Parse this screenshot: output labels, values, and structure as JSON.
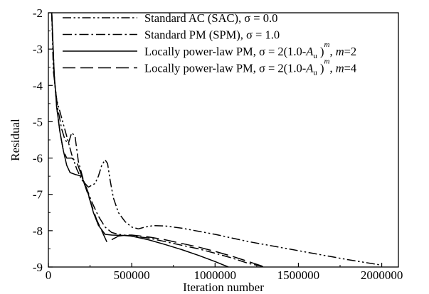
{
  "chart_data": {
    "type": "line",
    "xlabel": "Iteration number",
    "ylabel": "Residual",
    "xlim": [
      0,
      2100000
    ],
    "ylim": [
      -9,
      -2
    ],
    "x_ticks": [
      0,
      500000,
      1000000,
      1500000,
      2000000
    ],
    "x_tick_labels": [
      "0",
      "500000",
      "1000000",
      "1500000",
      "2000000"
    ],
    "y_ticks": [
      -9,
      -8,
      -7,
      -6,
      -5,
      -4,
      -3,
      -2
    ],
    "y_tick_labels": [
      "-9",
      "-8",
      "-7",
      "-6",
      "-5",
      "-4",
      "-3",
      "-2"
    ],
    "grid": false,
    "legend_position": "top-right",
    "series": [
      {
        "name": "Standard AC (SAC), σ = 0.0",
        "legend_parts": [
          {
            "t": "Standard AC (SAC), σ = 0.0"
          }
        ],
        "style": "dash-dot-dot",
        "x": [
          20000,
          30000,
          50000,
          80000,
          110000,
          140000,
          170000,
          200000,
          240000,
          280000,
          300000,
          320000,
          340000,
          355000,
          370000,
          390000,
          420000,
          460000,
          500000,
          540000,
          580000,
          630000,
          700000,
          800000,
          1000000,
          1200000,
          1500000,
          1800000,
          2000000
        ],
        "y": [
          -2.0,
          -3.6,
          -4.4,
          -4.9,
          -5.4,
          -5.9,
          -6.3,
          -6.6,
          -6.8,
          -6.7,
          -6.5,
          -6.2,
          -6.05,
          -6.15,
          -6.6,
          -7.1,
          -7.5,
          -7.75,
          -7.9,
          -7.95,
          -7.9,
          -7.86,
          -7.87,
          -7.93,
          -8.1,
          -8.3,
          -8.55,
          -8.8,
          -8.95
        ]
      },
      {
        "name": "Standard PM (SPM), σ = 1.0",
        "legend_parts": [
          {
            "t": "Standard PM (SPM), σ = 1.0"
          }
        ],
        "style": "dash-dot",
        "x": [
          20000,
          35000,
          55000,
          80000,
          100000,
          120000,
          140000,
          160000,
          180000,
          210000,
          260000,
          300000,
          340000,
          380000,
          420000,
          500000,
          600000,
          700000,
          800000,
          900000,
          1000000,
          1100000,
          1200000,
          1300000
        ],
        "y": [
          -2.0,
          -3.8,
          -4.6,
          -5.2,
          -5.5,
          -5.6,
          -5.3,
          -5.4,
          -6.1,
          -6.6,
          -7.2,
          -7.6,
          -7.9,
          -8.05,
          -8.1,
          -8.15,
          -8.2,
          -8.3,
          -8.4,
          -8.5,
          -8.62,
          -8.75,
          -8.9,
          -9.0
        ]
      },
      {
        "name": "Locally power-law PM, σ = 2(1.0-Au)^m, m=2",
        "legend_parts": [
          {
            "t": "Locally power-law PM, σ = 2(1.0-"
          },
          {
            "t": "A",
            "i": true
          },
          {
            "t": "u",
            "sub": true
          },
          {
            "t": " )"
          },
          {
            "t": "m",
            "sup": true,
            "i": true
          },
          {
            "t": ", "
          },
          {
            "t": "m",
            "i": true
          },
          {
            "t": "=2"
          }
        ],
        "style": "solid",
        "x": [
          20000,
          35000,
          50000,
          70000,
          90000,
          110000,
          130000,
          160000,
          200000,
          240000,
          270000,
          300000,
          340000,
          380000,
          450000,
          500000,
          600000,
          700000,
          800000,
          900000,
          1000000,
          1080000
        ],
        "y": [
          -2.0,
          -3.7,
          -4.6,
          -5.3,
          -5.8,
          -6.2,
          -6.4,
          -6.45,
          -6.5,
          -7.0,
          -7.5,
          -7.85,
          -8.1,
          -8.12,
          -8.13,
          -8.15,
          -8.25,
          -8.38,
          -8.52,
          -8.68,
          -8.85,
          -9.0
        ]
      },
      {
        "name": "Locally power-law PM, σ = 2(1.0-Au)^m, m=4",
        "legend_parts": [
          {
            "t": "Locally power-law PM, σ = 2(1.0-"
          },
          {
            "t": "A",
            "i": true
          },
          {
            "t": "u",
            "sub": true
          },
          {
            "t": " )"
          },
          {
            "t": "m",
            "sup": true,
            "i": true
          },
          {
            "t": ", "
          },
          {
            "t": "m",
            "i": true
          },
          {
            "t": "=4"
          }
        ],
        "style": "long-dash",
        "x": [
          20000,
          35000,
          50000,
          70000,
          90000,
          110000,
          140000,
          170000,
          200000,
          230000,
          260000,
          290000,
          320000,
          350000,
          380000,
          420000,
          470000,
          500000,
          600000,
          700000,
          800000,
          900000,
          1000000,
          1100000,
          1200000,
          1300000
        ],
        "y": [
          -2.0,
          -3.7,
          -4.6,
          -5.3,
          -5.8,
          -6.0,
          -6.0,
          -6.1,
          -6.5,
          -6.9,
          -7.3,
          -7.7,
          -8.0,
          -8.3,
          -8.25,
          -8.15,
          -8.12,
          -8.12,
          -8.17,
          -8.25,
          -8.35,
          -8.45,
          -8.57,
          -8.7,
          -8.85,
          -9.0
        ]
      }
    ]
  }
}
